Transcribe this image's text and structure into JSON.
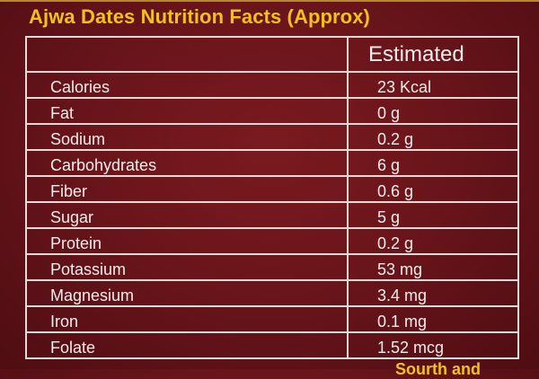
{
  "title": "Ajwa Dates Nutrition Facts (Approx)",
  "table": {
    "header": [
      "",
      "Estimated"
    ],
    "rows": [
      {
        "nutrient": "Calories",
        "value": "23 Kcal"
      },
      {
        "nutrient": "Fat",
        "value": "0 g"
      },
      {
        "nutrient": "Sodium",
        "value": "0.2 g"
      },
      {
        "nutrient": "Carbohydrates",
        "value": "6 g"
      },
      {
        "nutrient": "Fiber",
        "value": "0.6 g"
      },
      {
        "nutrient": "Sugar",
        "value": "5 g"
      },
      {
        "nutrient": "Protein",
        "value": "0.2 g"
      },
      {
        "nutrient": "Potassium",
        "value": "53 mg"
      },
      {
        "nutrient": "Magnesium",
        "value": "3.4 mg"
      },
      {
        "nutrient": "Iron",
        "value": "0.1 mg"
      },
      {
        "nutrient": "Folate",
        "value": "1.52 mcg"
      }
    ]
  },
  "footer": "Sourth and",
  "colors": {
    "background": "#6a151b",
    "title": "#f3c21a",
    "text": "#f4ecea",
    "border": "#e7d9d6",
    "top_line": "#b8862c"
  }
}
